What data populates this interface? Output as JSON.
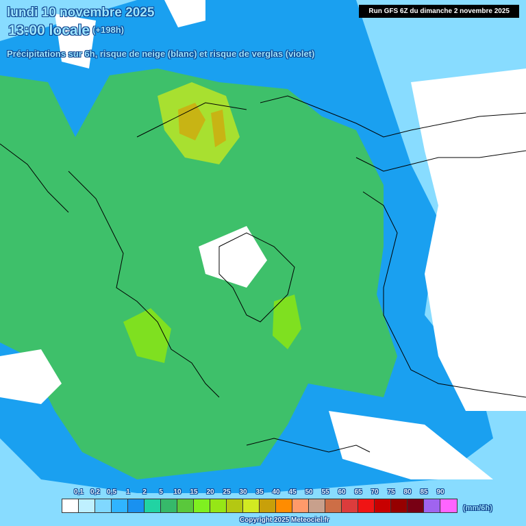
{
  "header": {
    "date": "lundi 10 novembre 2025",
    "time": "13:00 locale",
    "lead": "(+198h)",
    "subtitle": "Précipitations sur 6h, risque de neige (blanc) et risque de verglas (violet)",
    "run": "Run GFS 6Z du dimanche 2 novembre 2025"
  },
  "legend": {
    "unit": "(mm/6h)",
    "ticks": [
      "0,1",
      "0,2",
      "0,5",
      "1",
      "2",
      "5",
      "10",
      "15",
      "20",
      "25",
      "30",
      "35",
      "40",
      "45",
      "50",
      "55",
      "60",
      "65",
      "70",
      "75",
      "80",
      "85",
      "90"
    ],
    "colors": [
      "#ffffff",
      "#bff0ff",
      "#80d8ff",
      "#30b4ff",
      "#1991f0",
      "#21d3a3",
      "#36b96a",
      "#5ac83c",
      "#7ff020",
      "#96e616",
      "#b4c812",
      "#d2ea22",
      "#c8a00a",
      "#ff8c00",
      "#ff9a6a",
      "#c8a08c",
      "#cd6e46",
      "#dc3c3c",
      "#f01414",
      "#c80000",
      "#960000",
      "#780014",
      "#a064f0",
      "#ff64ff"
    ]
  },
  "colors": {
    "sea_precip": "#3ec06a",
    "light_precip": "#1aa0f0",
    "very_light": "#88dcff",
    "dry": "#ffffff",
    "moderate": "#7fe020",
    "heavy": "#b4c812"
  },
  "footer": {
    "copyright": "Copyright 2025 Meteociel.fr"
  }
}
